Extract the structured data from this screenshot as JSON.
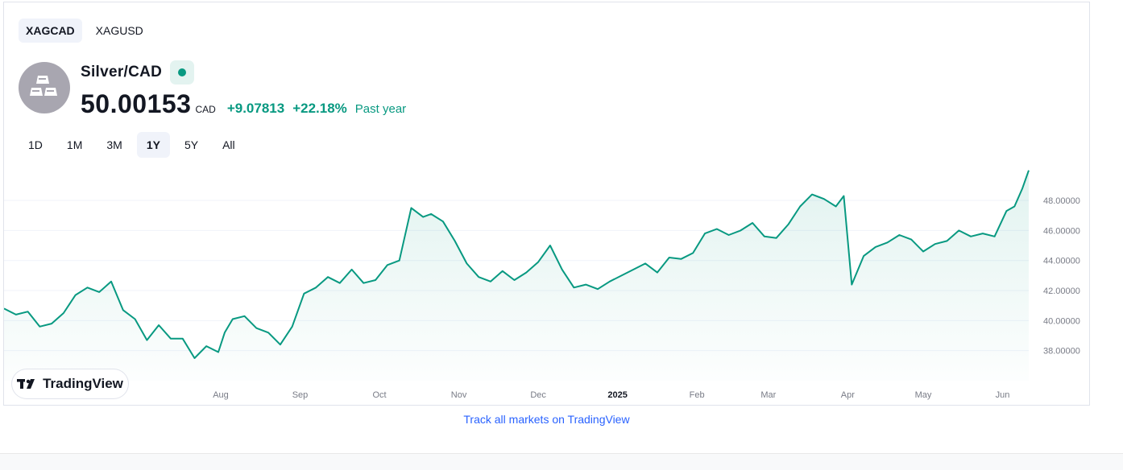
{
  "symbol_tabs": [
    {
      "label": "XAGCAD",
      "active": true
    },
    {
      "label": "XAGUSD",
      "active": false
    }
  ],
  "instrument": {
    "name": "Silver/CAD",
    "icon": "silver-bars-icon",
    "status_color": "#089981",
    "price": "50.00153",
    "currency": "CAD",
    "change_abs": "+9.07813",
    "change_pct": "+22.18%",
    "period_label": "Past year"
  },
  "range_tabs": [
    {
      "label": "1D",
      "active": false
    },
    {
      "label": "1M",
      "active": false
    },
    {
      "label": "3M",
      "active": false
    },
    {
      "label": "1Y",
      "active": true
    },
    {
      "label": "5Y",
      "active": false
    },
    {
      "label": "All",
      "active": false
    }
  ],
  "branding": {
    "logo_text": "TradingView"
  },
  "footer": {
    "link_text": "Track all markets on TradingView"
  },
  "colors": {
    "accent": "#089981",
    "link": "#2962ff",
    "axis_text": "#787b86"
  },
  "chart_data": {
    "type": "area",
    "title": "",
    "xlabel": "",
    "ylabel": "",
    "grid": true,
    "ylim": [
      36.0,
      50.2
    ],
    "y_ticks": [
      "38.00000",
      "40.00000",
      "42.00000",
      "44.00000",
      "46.00000",
      "48.00000"
    ],
    "y_tick_values": [
      38,
      40,
      42,
      44,
      46,
      48
    ],
    "x_ticks": [
      {
        "label": "Aug",
        "x": 1.0,
        "bold": false
      },
      {
        "label": "Sep",
        "x": 2.0,
        "bold": false
      },
      {
        "label": "Oct",
        "x": 3.0,
        "bold": false
      },
      {
        "label": "Nov",
        "x": 4.0,
        "bold": false
      },
      {
        "label": "Dec",
        "x": 5.0,
        "bold": false
      },
      {
        "label": "2025",
        "x": 6.0,
        "bold": true
      },
      {
        "label": "Feb",
        "x": 7.0,
        "bold": false
      },
      {
        "label": "Mar",
        "x": 7.9,
        "bold": false
      },
      {
        "label": "Apr",
        "x": 8.9,
        "bold": false
      },
      {
        "label": "May",
        "x": 9.85,
        "bold": false
      },
      {
        "label": "Jun",
        "x": 10.85,
        "bold": false
      }
    ],
    "x_range": [
      -1.73,
      11.18
    ],
    "series": [
      {
        "line_color": "#089981",
        "x": [
          -1.73,
          -1.58,
          -1.43,
          -1.28,
          -1.13,
          -0.98,
          -0.83,
          -0.68,
          -0.53,
          -0.38,
          -0.23,
          -0.08,
          0.07,
          0.22,
          0.37,
          0.52,
          0.67,
          0.82,
          0.97,
          1.05,
          1.15,
          1.3,
          1.45,
          1.6,
          1.75,
          1.9,
          2.05,
          2.2,
          2.35,
          2.5,
          2.65,
          2.8,
          2.95,
          3.1,
          3.25,
          3.4,
          3.55,
          3.65,
          3.8,
          3.95,
          4.1,
          4.25,
          4.4,
          4.55,
          4.7,
          4.85,
          5.0,
          5.15,
          5.3,
          5.45,
          5.6,
          5.75,
          5.9,
          6.05,
          6.2,
          6.35,
          6.5,
          6.65,
          6.8,
          6.95,
          7.1,
          7.25,
          7.4,
          7.55,
          7.7,
          7.85,
          8.0,
          8.15,
          8.3,
          8.45,
          8.6,
          8.75,
          8.85,
          8.95,
          9.1,
          9.25,
          9.4,
          9.55,
          9.7,
          9.85,
          10.0,
          10.15,
          10.3,
          10.45,
          10.6,
          10.75,
          10.9,
          11.0,
          11.1,
          11.18
        ],
        "y": [
          40.8,
          40.4,
          40.6,
          39.6,
          39.8,
          40.5,
          41.7,
          42.2,
          41.9,
          42.6,
          40.7,
          40.1,
          38.7,
          39.7,
          38.8,
          38.8,
          37.5,
          38.3,
          37.9,
          39.2,
          40.1,
          40.3,
          39.5,
          39.2,
          38.4,
          39.6,
          41.8,
          42.2,
          42.9,
          42.5,
          43.4,
          42.5,
          42.7,
          43.7,
          44.0,
          47.5,
          46.9,
          47.1,
          46.6,
          45.3,
          43.8,
          42.9,
          42.6,
          43.3,
          42.7,
          43.2,
          43.9,
          45.0,
          43.4,
          42.2,
          42.4,
          42.1,
          42.6,
          43.0,
          43.4,
          43.8,
          43.2,
          44.2,
          44.1,
          44.5,
          45.8,
          46.1,
          45.7,
          46.0,
          46.5,
          45.6,
          45.5,
          46.4,
          47.6,
          48.4,
          48.1,
          47.6,
          48.3,
          42.4,
          44.3,
          44.9,
          45.2,
          45.7,
          45.4,
          44.6,
          45.1,
          45.3,
          46.0,
          45.6,
          45.8,
          45.6,
          47.3,
          47.6,
          48.8,
          50.0
        ]
      }
    ]
  }
}
